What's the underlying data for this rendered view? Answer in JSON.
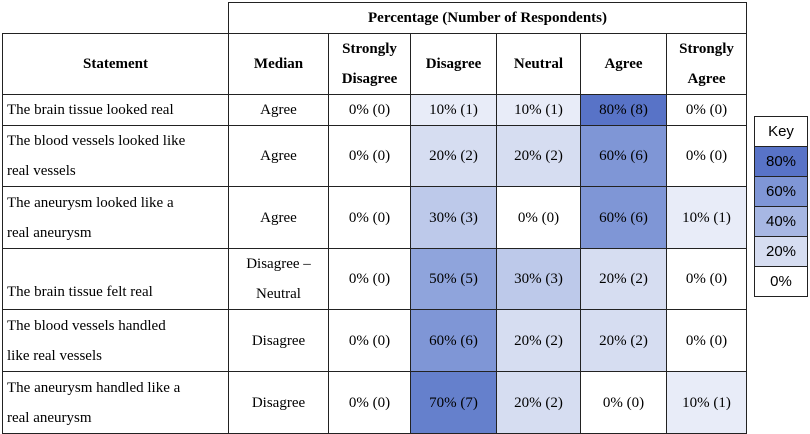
{
  "header": {
    "group_title": "Percentage (Number of Respondents)",
    "statement": "Statement",
    "median": "Median",
    "strongly_disagree": [
      "Strongly",
      "Disagree"
    ],
    "disagree": "Disagree",
    "neutral": "Neutral",
    "agree": "Agree",
    "strongly_agree": [
      "Strongly",
      "Agree"
    ]
  },
  "colors": {
    "0": "#ffffff",
    "10": "#e8ecf8",
    "20": "#d6ddf1",
    "30": "#bdc9ea",
    "50": "#8fa4dc",
    "60": "#7f96d6",
    "70": "#6580cc",
    "80": "#5873c7"
  },
  "rows": [
    {
      "statement": [
        "The brain tissue looked real"
      ],
      "median": [
        "Agree"
      ],
      "cells": [
        {
          "text": "0% (0)",
          "pct": 0
        },
        {
          "text": "10% (1)",
          "pct": 10
        },
        {
          "text": "10% (1)",
          "pct": 10
        },
        {
          "text": "80% (8)",
          "pct": 80
        },
        {
          "text": "0% (0)",
          "pct": 0
        }
      ]
    },
    {
      "statement": [
        "The blood vessels looked like",
        "real vessels"
      ],
      "median": [
        "Agree"
      ],
      "cells": [
        {
          "text": "0% (0)",
          "pct": 0
        },
        {
          "text": "20% (2)",
          "pct": 20
        },
        {
          "text": "20% (2)",
          "pct": 20
        },
        {
          "text": "60% (6)",
          "pct": 60
        },
        {
          "text": "0% (0)",
          "pct": 0
        }
      ]
    },
    {
      "statement": [
        "The aneurysm looked like a",
        "real aneurysm"
      ],
      "median": [
        "Agree"
      ],
      "cells": [
        {
          "text": "0% (0)",
          "pct": 0
        },
        {
          "text": "30% (3)",
          "pct": 30
        },
        {
          "text": "0% (0)",
          "pct": 0
        },
        {
          "text": "60% (6)",
          "pct": 60
        },
        {
          "text": "10% (1)",
          "pct": 10
        }
      ]
    },
    {
      "statement": [
        "The brain tissue felt real"
      ],
      "median": [
        "Disagree –",
        "Neutral"
      ],
      "bottom": true,
      "cells": [
        {
          "text": "0% (0)",
          "pct": 0
        },
        {
          "text": "50% (5)",
          "pct": 50
        },
        {
          "text": "30% (3)",
          "pct": 30
        },
        {
          "text": "20% (2)",
          "pct": 20
        },
        {
          "text": "0% (0)",
          "pct": 0
        }
      ]
    },
    {
      "statement": [
        "The blood vessels handled",
        "like real vessels"
      ],
      "median": [
        "Disagree"
      ],
      "cells": [
        {
          "text": "0% (0)",
          "pct": 0
        },
        {
          "text": "60% (6)",
          "pct": 60
        },
        {
          "text": "20% (2)",
          "pct": 20
        },
        {
          "text": "20% (2)",
          "pct": 20
        },
        {
          "text": "0% (0)",
          "pct": 0
        }
      ]
    },
    {
      "statement": [
        "The aneurysm handled like a",
        "real aneurysm"
      ],
      "median": [
        "Disagree"
      ],
      "cells": [
        {
          "text": "0% (0)",
          "pct": 0
        },
        {
          "text": "70% (7)",
          "pct": 70
        },
        {
          "text": "20% (2)",
          "pct": 20
        },
        {
          "text": "0% (0)",
          "pct": 0
        },
        {
          "text": "10% (1)",
          "pct": 10
        }
      ]
    }
  ],
  "key": {
    "title": "Key",
    "items": [
      {
        "label": "80%",
        "color": "#5873c7"
      },
      {
        "label": "60%",
        "color": "#7f96d6"
      },
      {
        "label": "40%",
        "color": "#a7b7e3"
      },
      {
        "label": "20%",
        "color": "#d6ddf1"
      },
      {
        "label": "0%",
        "color": "#ffffff"
      }
    ]
  }
}
